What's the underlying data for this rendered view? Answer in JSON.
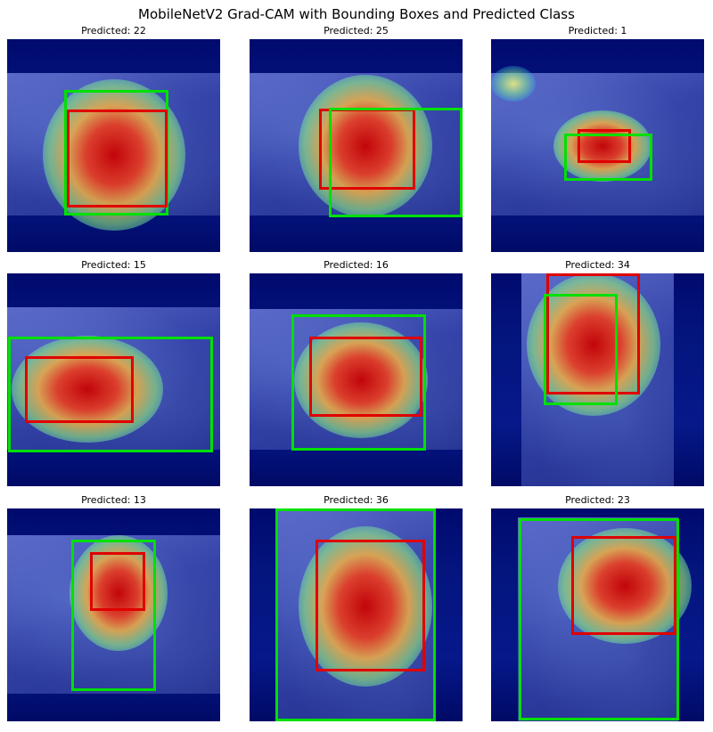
{
  "figure": {
    "title": "MobileNetV2 Grad-CAM with Bounding Boxes and Predicted Class"
  },
  "colors": {
    "predicted_box": "#e00000",
    "ground_truth_box": "#00e000"
  },
  "panels": [
    {
      "title": "Predicted: 22"
    },
    {
      "title": "Predicted: 25"
    },
    {
      "title": "Predicted: 1"
    },
    {
      "title": "Predicted: 15"
    },
    {
      "title": "Predicted: 16"
    },
    {
      "title": "Predicted: 34"
    },
    {
      "title": "Predicted: 13"
    },
    {
      "title": "Predicted: 36"
    },
    {
      "title": "Predicted: 23"
    }
  ]
}
